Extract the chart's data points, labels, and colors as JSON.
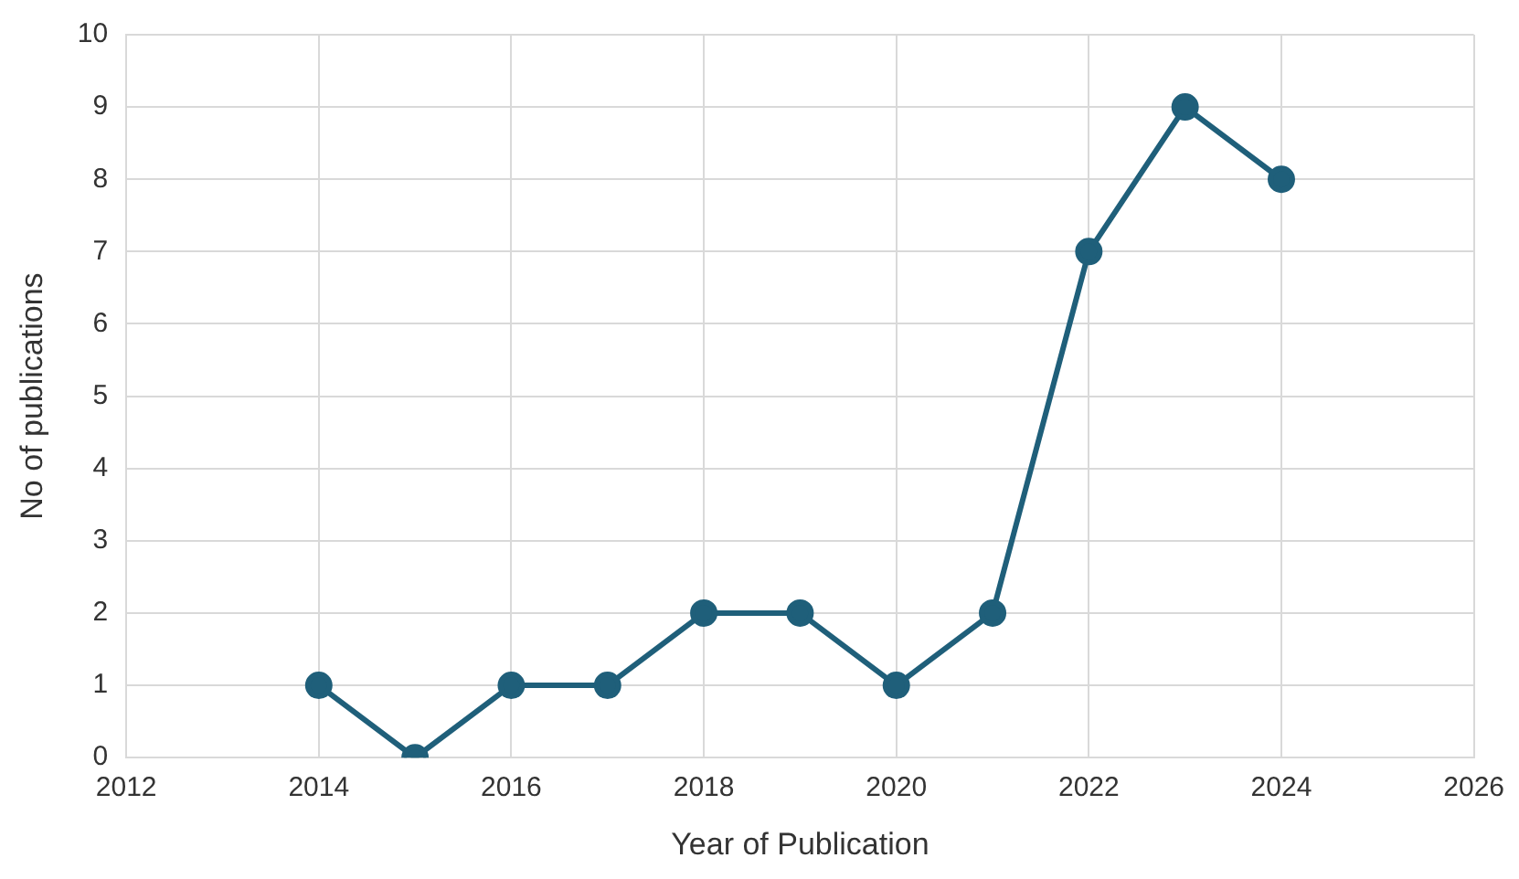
{
  "chart_data": {
    "type": "line",
    "xlabel": "Year of Publication",
    "ylabel": "No of publications",
    "x": [
      2014,
      2015,
      2016,
      2017,
      2018,
      2019,
      2020,
      2021,
      2022,
      2023,
      2024
    ],
    "series": [
      {
        "color": "#1f5f7a",
        "values": [
          1,
          0,
          1,
          1,
          2,
          2,
          1,
          2,
          7,
          9,
          8
        ]
      }
    ],
    "xlim": [
      2012,
      2026
    ],
    "xticks": [
      2012,
      2014,
      2016,
      2018,
      2020,
      2022,
      2024,
      2026
    ],
    "ylim": [
      0,
      10
    ],
    "yticks": [
      0,
      1,
      2,
      3,
      4,
      5,
      6,
      7,
      8,
      9,
      10
    ],
    "grid": true,
    "legend": false,
    "marker": "circle",
    "line_style": "solid"
  }
}
